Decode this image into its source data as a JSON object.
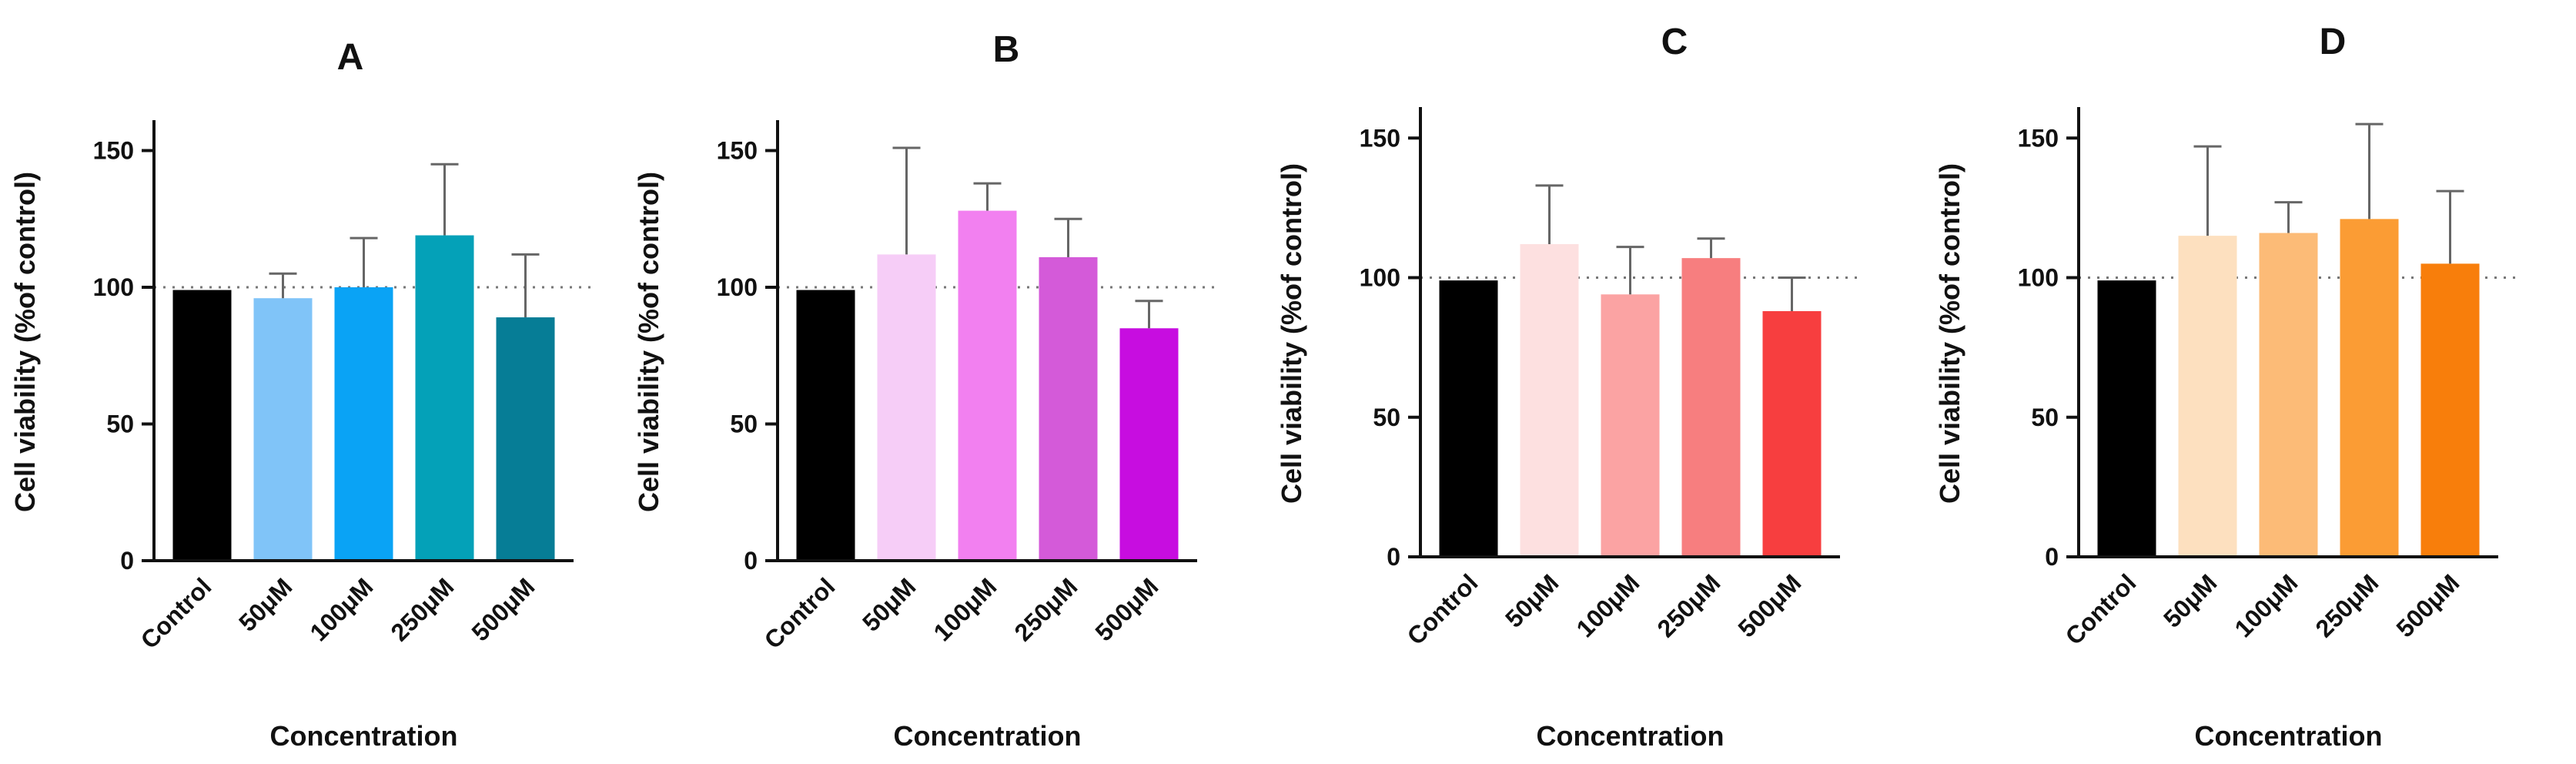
{
  "chart_data": [
    {
      "panel": "A",
      "type": "bar",
      "title": "A",
      "xlabel": "Concentration",
      "ylabel": "Cell viability (%of control)",
      "ylim": [
        0,
        160
      ],
      "yticks": [
        0,
        50,
        100,
        150
      ],
      "reference_line": 100,
      "categories": [
        "Control",
        "50μM",
        "100μM",
        "250μM",
        "500μM"
      ],
      "values": [
        99,
        96,
        100,
        119,
        89
      ],
      "errors": [
        0,
        9,
        18,
        26,
        23
      ],
      "colors": [
        "#000000",
        "#80c4f8",
        "#0aa3f5",
        "#04a1b8",
        "#067d96"
      ]
    },
    {
      "panel": "B",
      "type": "bar",
      "title": "B",
      "xlabel": "Concentration",
      "ylabel": "Cell viability (%of control)",
      "ylim": [
        0,
        160
      ],
      "yticks": [
        0,
        50,
        100,
        150
      ],
      "reference_line": 100,
      "categories": [
        "Control",
        "50μM",
        "100μM",
        "250μM",
        "500μM"
      ],
      "values": [
        99,
        112,
        128,
        111,
        85
      ],
      "errors": [
        0,
        39,
        10,
        14,
        10
      ],
      "colors": [
        "#000000",
        "#f6cdf7",
        "#f280f0",
        "#d45ad9",
        "#c70de0"
      ]
    },
    {
      "panel": "C",
      "type": "bar",
      "title": "C",
      "xlabel": "Concentration",
      "ylabel": "Cell viability (%of control)",
      "ylim": [
        0,
        160
      ],
      "yticks": [
        0,
        50,
        100,
        150
      ],
      "reference_line": 100,
      "categories": [
        "Control",
        "50μM",
        "100μM",
        "250μM",
        "500μM"
      ],
      "values": [
        99,
        112,
        94,
        107,
        88
      ],
      "errors": [
        0,
        21,
        17,
        7,
        12
      ],
      "colors": [
        "#000000",
        "#fde0e0",
        "#fba3a3",
        "#f77e7f",
        "#f73e3f"
      ]
    },
    {
      "panel": "D",
      "type": "bar",
      "title": "D",
      "xlabel": "Concentration",
      "ylabel": "Cell viability (%of control)",
      "ylim": [
        0,
        160
      ],
      "yticks": [
        0,
        50,
        100,
        150
      ],
      "reference_line": 100,
      "categories": [
        "Control",
        "50μM",
        "100μM",
        "250μM",
        "500μM"
      ],
      "values": [
        99,
        115,
        116,
        121,
        105
      ],
      "errors": [
        0,
        32,
        11,
        34,
        26
      ],
      "colors": [
        "#000000",
        "#fde0bf",
        "#fcbb77",
        "#fb9c34",
        "#f87e0b"
      ]
    }
  ]
}
